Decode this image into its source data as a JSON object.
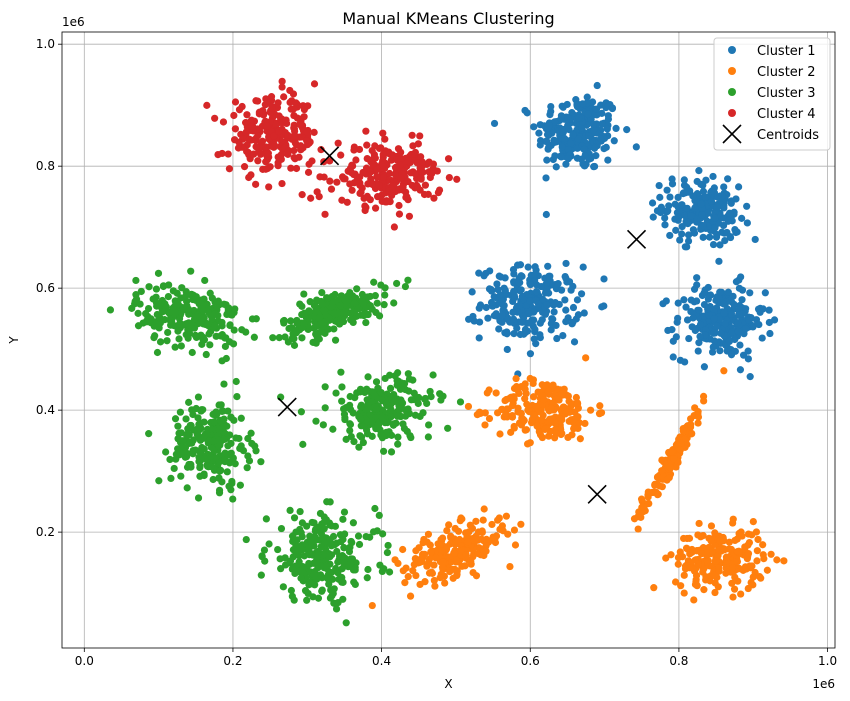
{
  "chart_data": {
    "type": "scatter",
    "title": "Manual KMeans Clustering",
    "xlabel": "X",
    "ylabel": "Y",
    "x_offset_label": "1e6",
    "y_offset_label": "1e6",
    "xlim": [
      -0.03,
      1.01
    ],
    "ylim": [
      0.01,
      1.02
    ],
    "xticks": [
      0.0,
      0.2,
      0.4,
      0.6,
      0.8,
      1.0
    ],
    "xtick_labels": [
      "0.0",
      "0.2",
      "0.4",
      "0.6",
      "0.8",
      "1.0"
    ],
    "yticks": [
      0.2,
      0.4,
      0.6,
      0.8,
      1.0
    ],
    "ytick_labels": [
      "0.2",
      "0.4",
      "0.6",
      "0.8",
      "1.0"
    ],
    "grid": true,
    "legend_position": "top-right",
    "series": [
      {
        "name": "Cluster 1",
        "color": "#1f77b4",
        "blobs": [
          {
            "cx": 0.665,
            "cy": 0.855,
            "sx": 0.028,
            "sy": 0.032,
            "n": 230,
            "rho": 0
          },
          {
            "cx": 0.83,
            "cy": 0.725,
            "sx": 0.026,
            "sy": 0.027,
            "n": 200,
            "rho": -0.2
          },
          {
            "cx": 0.6,
            "cy": 0.575,
            "sx": 0.033,
            "sy": 0.03,
            "n": 230,
            "rho": 0
          },
          {
            "cx": 0.855,
            "cy": 0.545,
            "sx": 0.03,
            "sy": 0.03,
            "n": 230,
            "rho": 0
          }
        ]
      },
      {
        "name": "Cluster 2",
        "color": "#ff7f0e",
        "blobs": [
          {
            "cx": 0.62,
            "cy": 0.4,
            "sx": 0.033,
            "sy": 0.025,
            "n": 220,
            "rho": 0
          },
          {
            "cx": 0.79,
            "cy": 0.32,
            "sx": 0.022,
            "sy": 0.045,
            "n": 140,
            "rho": 0.97
          },
          {
            "cx": 0.5,
            "cy": 0.17,
            "sx": 0.035,
            "sy": 0.025,
            "n": 220,
            "rho": 0.6
          },
          {
            "cx": 0.855,
            "cy": 0.155,
            "sx": 0.03,
            "sy": 0.025,
            "n": 220,
            "rho": 0
          }
        ]
      },
      {
        "name": "Cluster 3",
        "color": "#2ca02c",
        "blobs": [
          {
            "cx": 0.14,
            "cy": 0.555,
            "sx": 0.035,
            "sy": 0.026,
            "n": 230,
            "rho": -0.2
          },
          {
            "cx": 0.335,
            "cy": 0.56,
            "sx": 0.035,
            "sy": 0.02,
            "n": 220,
            "rho": 0.6
          },
          {
            "cx": 0.17,
            "cy": 0.345,
            "sx": 0.026,
            "sy": 0.035,
            "n": 220,
            "rho": 0
          },
          {
            "cx": 0.4,
            "cy": 0.4,
            "sx": 0.035,
            "sy": 0.028,
            "n": 220,
            "rho": 0.1
          },
          {
            "cx": 0.32,
            "cy": 0.16,
            "sx": 0.037,
            "sy": 0.035,
            "n": 240,
            "rho": 0
          }
        ]
      },
      {
        "name": "Cluster 4",
        "color": "#d62728",
        "blobs": [
          {
            "cx": 0.255,
            "cy": 0.85,
            "sx": 0.03,
            "sy": 0.03,
            "n": 240,
            "rho": 0
          },
          {
            "cx": 0.41,
            "cy": 0.785,
            "sx": 0.035,
            "sy": 0.025,
            "n": 240,
            "rho": 0.1
          }
        ]
      }
    ],
    "centroids": {
      "name": "Centroids",
      "color": "#000000",
      "points": [
        {
          "x": 0.743,
          "y": 0.68
        },
        {
          "x": 0.69,
          "y": 0.262
        },
        {
          "x": 0.273,
          "y": 0.405
        },
        {
          "x": 0.33,
          "y": 0.817
        }
      ]
    }
  }
}
